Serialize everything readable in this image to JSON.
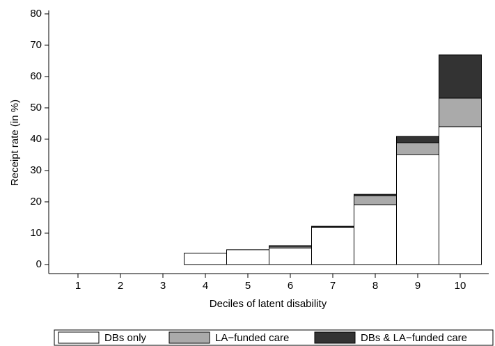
{
  "chart_data": {
    "type": "stacked-bar",
    "y_label": "Receipt rate (in %)",
    "x_label": "Deciles of latent disability",
    "categories": [
      "1",
      "2",
      "3",
      "4",
      "5",
      "6",
      "7",
      "8",
      "9",
      "10"
    ],
    "series": [
      {
        "name": "DBs only",
        "color": "#ffffff",
        "values": [
          0,
          0,
          0,
          3.6,
          4.7,
          5.3,
          11.9,
          19.1,
          35.1,
          44.0
        ]
      },
      {
        "name": "LA−funded care",
        "color": "#aaaaaa",
        "values": [
          0,
          0,
          0,
          0,
          0,
          0.5,
          0.2,
          2.9,
          3.8,
          9.1
        ]
      },
      {
        "name": "DBs & LA−funded care",
        "color": "#333333",
        "values": [
          0,
          0,
          0,
          0,
          0,
          0.2,
          0.1,
          0.4,
          2.0,
          13.8
        ]
      }
    ],
    "ylim": [
      -2.9,
      81.1
    ],
    "yticks": [
      0,
      10,
      20,
      30,
      40,
      50,
      60,
      70,
      80
    ],
    "grid": false,
    "legend": "bottom"
  }
}
